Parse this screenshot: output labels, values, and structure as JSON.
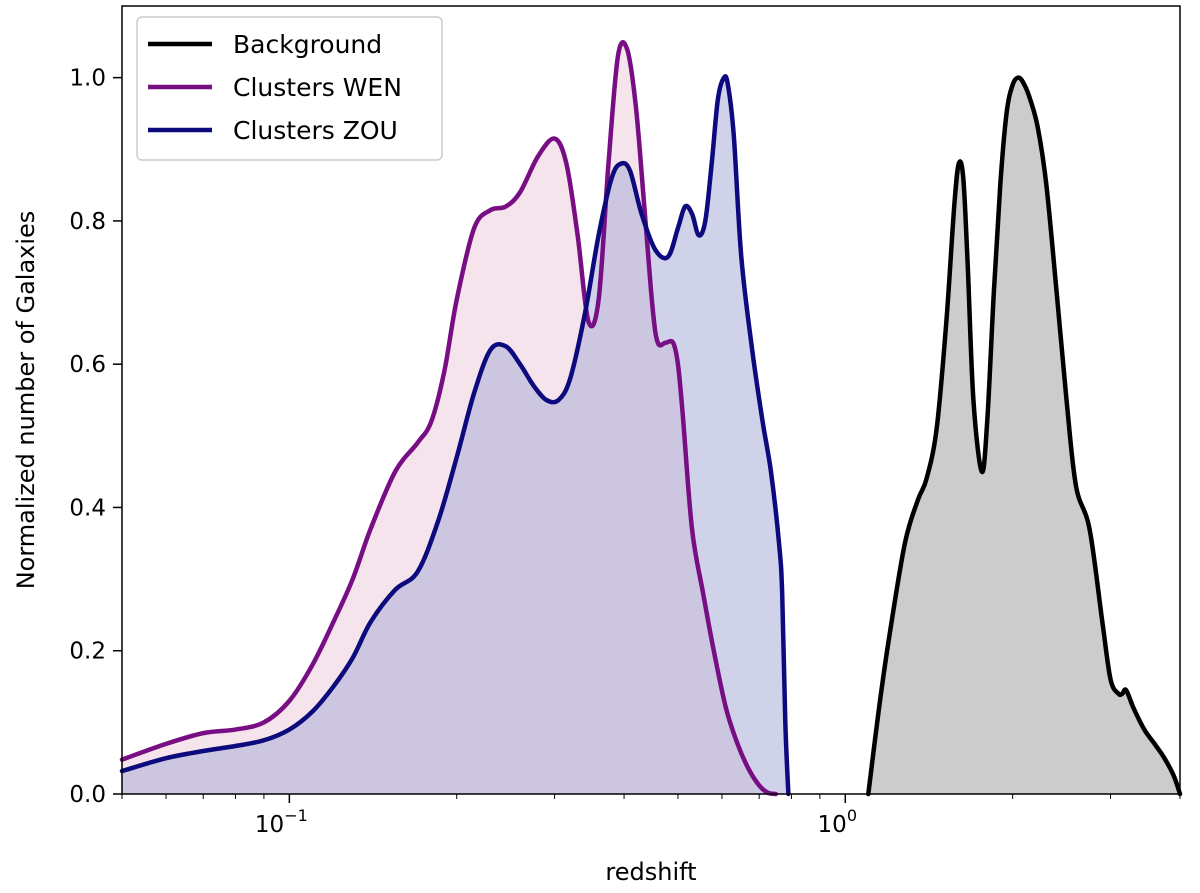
{
  "chart_data": {
    "type": "area",
    "title": "",
    "xlabel": "redshift",
    "ylabel": "Normalized number of Galaxies",
    "xscale": "log",
    "xlim": [
      0.05,
      4.0
    ],
    "ylim": [
      0.0,
      1.1
    ],
    "grid": false,
    "legend_position": "upper left",
    "x_ticks": [
      {
        "value": 0.1,
        "base": "10",
        "exp": "−1"
      },
      {
        "value": 1.0,
        "base": "10",
        "exp": "0"
      }
    ],
    "y_ticks": [
      "0.0",
      "0.2",
      "0.4",
      "0.6",
      "0.8",
      "1.0"
    ],
    "series": [
      {
        "name": "Background",
        "color": "#000000",
        "fill": "#cccccc",
        "fill_opacity": 1,
        "x": [
          1.1,
          1.15,
          1.2,
          1.28,
          1.35,
          1.4,
          1.46,
          1.52,
          1.57,
          1.6,
          1.63,
          1.66,
          1.7,
          1.76,
          1.8,
          1.85,
          1.9,
          1.95,
          2.0,
          2.05,
          2.1,
          2.15,
          2.22,
          2.3,
          2.4,
          2.5,
          2.6,
          2.75,
          2.9,
          3.0,
          3.1,
          3.15,
          3.2,
          3.3,
          3.45,
          3.6,
          3.75,
          3.9,
          4.0
        ],
        "y": [
          0.0,
          0.12,
          0.22,
          0.35,
          0.41,
          0.44,
          0.51,
          0.66,
          0.82,
          0.88,
          0.86,
          0.74,
          0.55,
          0.45,
          0.52,
          0.7,
          0.85,
          0.95,
          0.99,
          1.0,
          0.99,
          0.97,
          0.93,
          0.85,
          0.7,
          0.55,
          0.43,
          0.37,
          0.24,
          0.16,
          0.14,
          0.14,
          0.145,
          0.12,
          0.09,
          0.07,
          0.05,
          0.025,
          0.0
        ]
      },
      {
        "name": "Clusters WEN",
        "color": "#780e84",
        "fill": "#e8c3d5",
        "fill_opacity": 0.45,
        "x": [
          0.05,
          0.06,
          0.07,
          0.08,
          0.09,
          0.1,
          0.11,
          0.12,
          0.13,
          0.14,
          0.155,
          0.17,
          0.18,
          0.19,
          0.2,
          0.215,
          0.23,
          0.245,
          0.26,
          0.28,
          0.3,
          0.315,
          0.33,
          0.345,
          0.36,
          0.375,
          0.39,
          0.405,
          0.42,
          0.435,
          0.45,
          0.46,
          0.475,
          0.49,
          0.5,
          0.51,
          0.53,
          0.555,
          0.58,
          0.61,
          0.64,
          0.67,
          0.7,
          0.725,
          0.75
        ],
        "y": [
          0.048,
          0.07,
          0.085,
          0.09,
          0.1,
          0.13,
          0.18,
          0.24,
          0.3,
          0.37,
          0.45,
          0.49,
          0.52,
          0.59,
          0.69,
          0.79,
          0.815,
          0.82,
          0.84,
          0.89,
          0.915,
          0.88,
          0.78,
          0.66,
          0.69,
          0.88,
          1.03,
          1.04,
          0.96,
          0.82,
          0.68,
          0.63,
          0.63,
          0.63,
          0.6,
          0.53,
          0.37,
          0.28,
          0.2,
          0.12,
          0.07,
          0.035,
          0.012,
          0.002,
          0.0
        ]
      },
      {
        "name": "Clusters ZOU",
        "color": "#0d0a7e",
        "fill": "#a9add8",
        "fill_opacity": 0.55,
        "x": [
          0.05,
          0.06,
          0.07,
          0.08,
          0.09,
          0.1,
          0.11,
          0.12,
          0.13,
          0.14,
          0.155,
          0.17,
          0.185,
          0.2,
          0.215,
          0.23,
          0.245,
          0.26,
          0.275,
          0.29,
          0.305,
          0.32,
          0.34,
          0.36,
          0.38,
          0.395,
          0.41,
          0.43,
          0.455,
          0.48,
          0.5,
          0.515,
          0.53,
          0.545,
          0.56,
          0.575,
          0.59,
          0.605,
          0.615,
          0.63,
          0.65,
          0.68,
          0.71,
          0.735,
          0.76,
          0.77,
          0.78,
          0.79
        ],
        "y": [
          0.032,
          0.05,
          0.06,
          0.067,
          0.075,
          0.09,
          0.115,
          0.15,
          0.19,
          0.24,
          0.285,
          0.31,
          0.38,
          0.47,
          0.56,
          0.62,
          0.625,
          0.6,
          0.57,
          0.55,
          0.55,
          0.58,
          0.67,
          0.78,
          0.86,
          0.88,
          0.87,
          0.81,
          0.76,
          0.75,
          0.79,
          0.82,
          0.81,
          0.78,
          0.8,
          0.88,
          0.97,
          1.0,
          0.99,
          0.92,
          0.75,
          0.62,
          0.52,
          0.45,
          0.35,
          0.28,
          0.1,
          0.0
        ]
      }
    ]
  }
}
